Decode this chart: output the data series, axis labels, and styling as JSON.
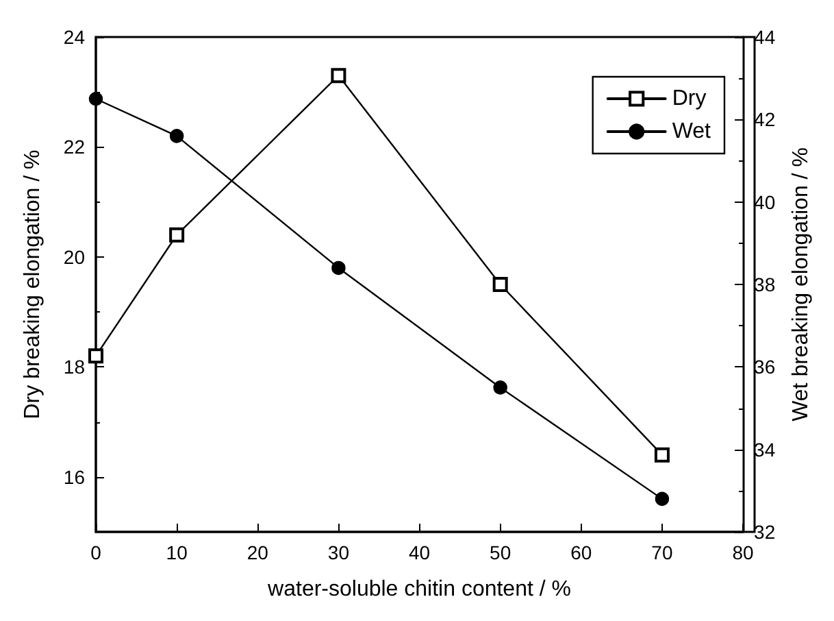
{
  "chart_data": {
    "type": "line",
    "xlabel": "water-soluble chitin content / %",
    "ylabel": "Dry breaking elongation / %",
    "y2label": "Wet breaking elongation / %",
    "x": [
      0,
      10,
      30,
      50,
      70
    ],
    "series": [
      {
        "name": "Dry",
        "color": "#000000",
        "values": [
          18.2,
          20.4,
          23.3,
          19.5,
          16.4
        ],
        "marker": "square"
      },
      {
        "name": "Wet",
        "color": "#000000",
        "values": [
          42.5,
          41.6,
          38.4,
          35.5,
          32.8
        ],
        "marker": "circle",
        "axis": "y2"
      }
    ],
    "xlim": [
      0,
      80
    ],
    "xticks": [
      0,
      10,
      20,
      30,
      40,
      50,
      60,
      70,
      80
    ],
    "ylim": [
      15,
      24
    ],
    "yticks": [
      16,
      18,
      20,
      22,
      24
    ],
    "y2lim": [
      32,
      44
    ],
    "y2ticks": [
      32,
      34,
      36,
      38,
      40,
      42,
      44
    ],
    "grid": false,
    "legend": "top right",
    "line_style": "solid"
  }
}
